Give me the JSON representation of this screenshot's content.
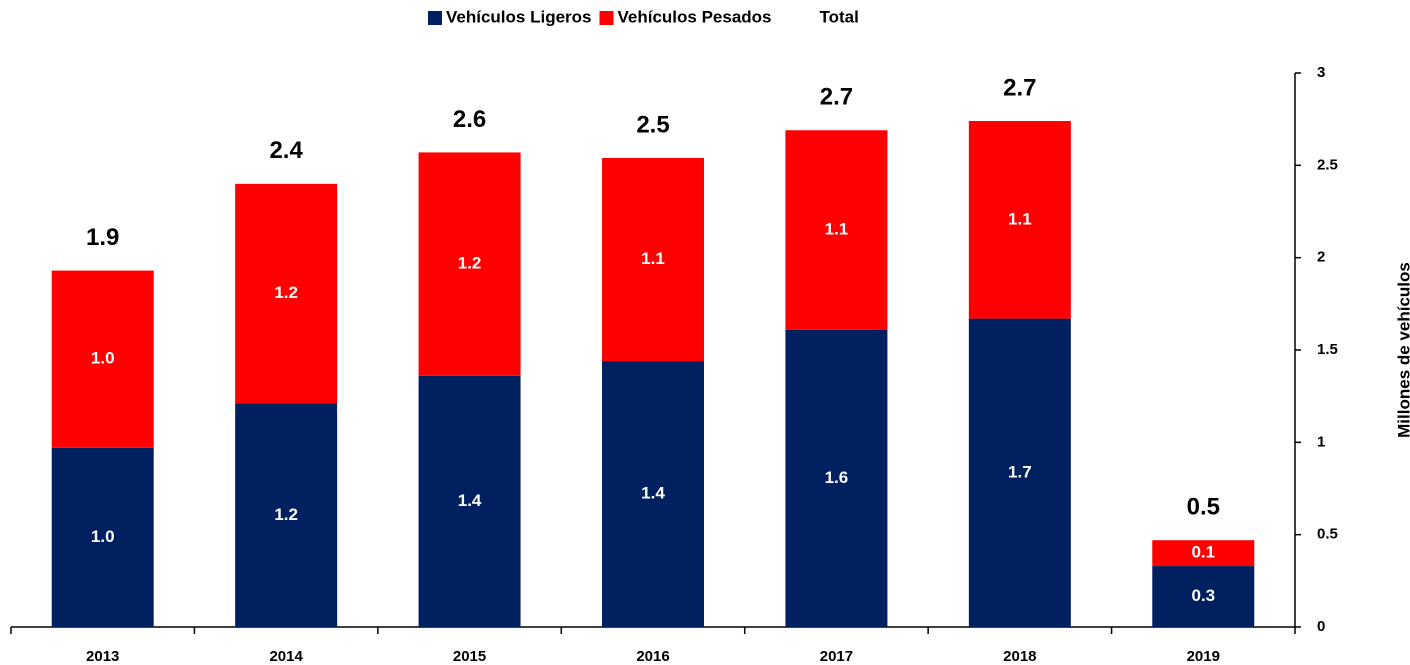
{
  "chart_data": {
    "type": "stacked_bar",
    "categories": [
      "2013",
      "2014",
      "2015",
      "2016",
      "2017",
      "2018",
      "2019"
    ],
    "series": [
      {
        "name": "Vehículos Ligeros",
        "color": "#002060",
        "values": [
          0.97,
          1.21,
          1.36,
          1.44,
          1.61,
          1.67,
          0.33
        ],
        "value_labels": [
          "1.0",
          "1.2",
          "1.4",
          "1.4",
          "1.6",
          "1.7",
          "0.3"
        ]
      },
      {
        "name": "Vehículos Pesados",
        "color": "#ff0000",
        "values": [
          0.96,
          1.19,
          1.21,
          1.1,
          1.08,
          1.07,
          0.14
        ],
        "value_labels": [
          "1.0",
          "1.2",
          "1.2",
          "1.1",
          "1.1",
          "1.1",
          "0.1"
        ]
      },
      {
        "name": "Total",
        "values": [
          1.93,
          2.4,
          2.57,
          2.54,
          2.69,
          2.74,
          0.47
        ],
        "value_labels": [
          "1.9",
          "2.4",
          "2.6",
          "2.5",
          "2.7",
          "2.7",
          "0.5"
        ]
      }
    ],
    "y_label": "Millones de vehículos",
    "ylim": [
      0,
      3
    ],
    "yticks": [
      0,
      0.5,
      1,
      1.5,
      2,
      2.5,
      3
    ],
    "y_axis_side": "right",
    "legend": "top"
  }
}
